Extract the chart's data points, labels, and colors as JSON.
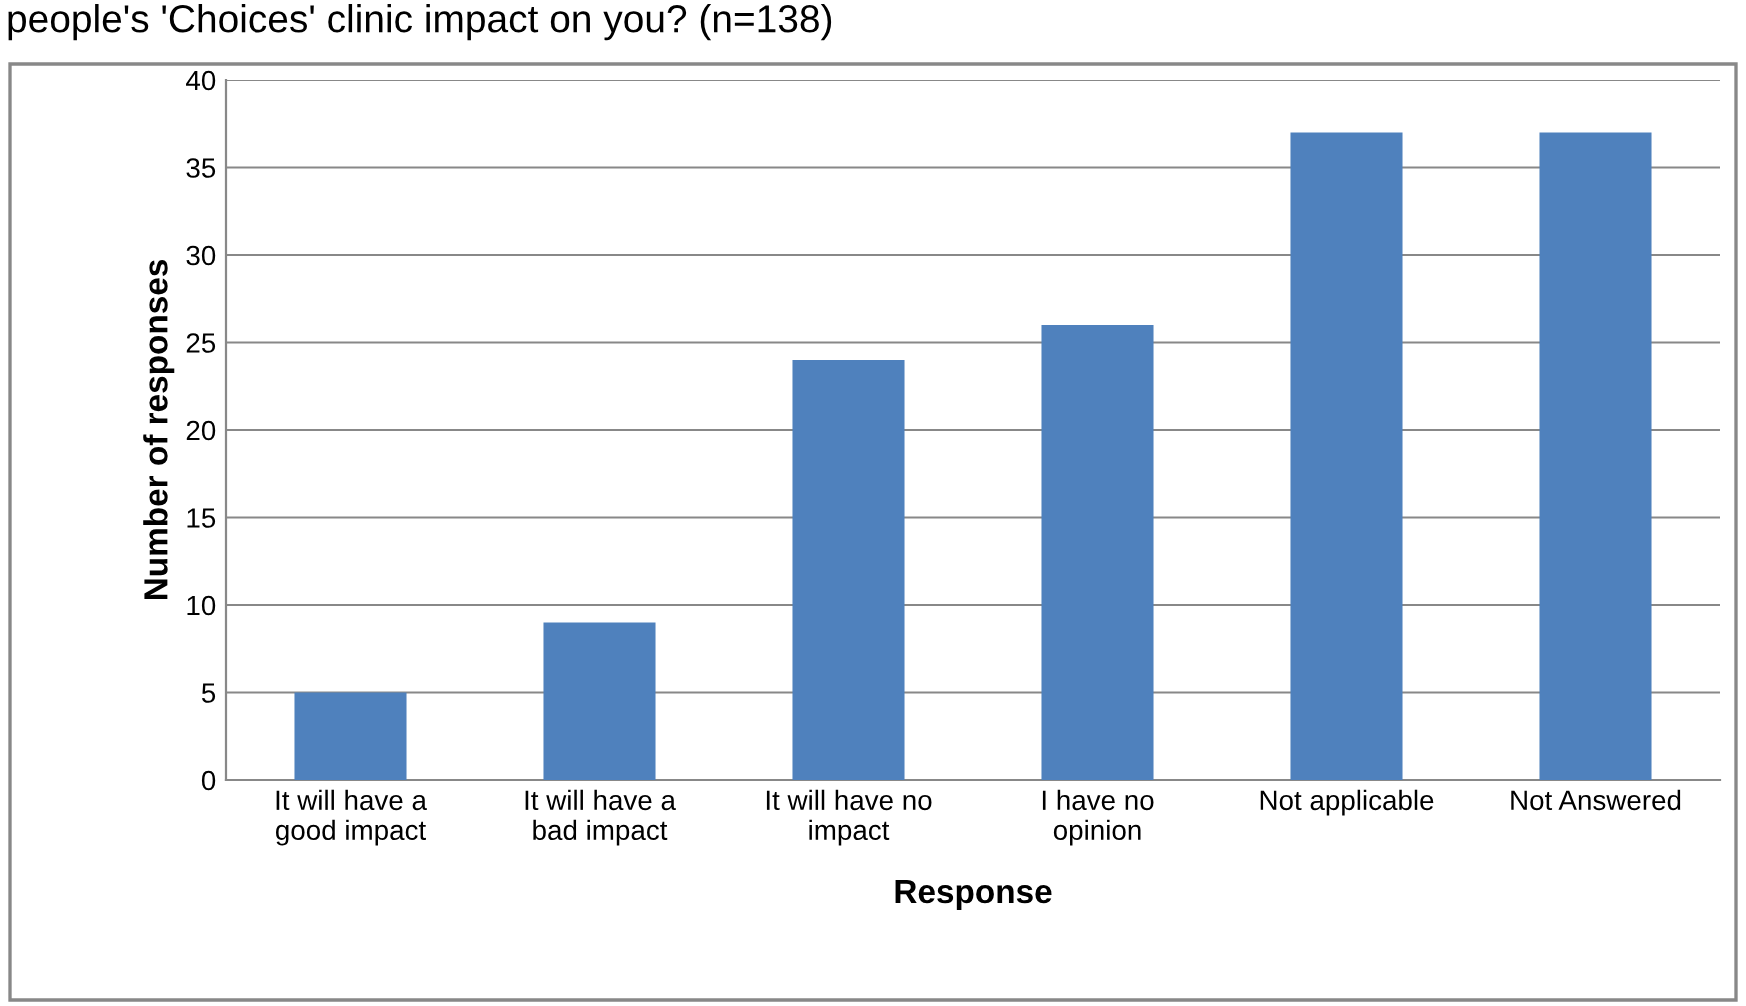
{
  "chart_data": {
    "type": "bar",
    "title": "people's 'Choices' clinic impact on you? (n=138)",
    "xlabel": "Response",
    "ylabel": "Number of responses",
    "categories": [
      "It will have a\ngood impact",
      "It will have a\nbad impact",
      "It will have no\nimpact",
      "I have no\nopinion",
      "Not applicable",
      "Not Answered"
    ],
    "values": [
      5,
      9,
      24,
      26,
      37,
      37
    ],
    "color": "#4f81bd",
    "ylim": [
      0,
      40
    ],
    "yticks": [
      0,
      5,
      10,
      15,
      20,
      25,
      30,
      35,
      40
    ],
    "grid": "y",
    "legend": false
  }
}
